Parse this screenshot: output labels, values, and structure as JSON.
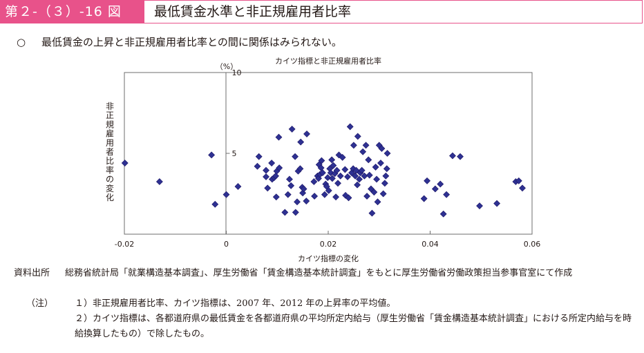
{
  "figure": {
    "number": "第２-（３）-16 図",
    "title": "最低賃金水準と非正規雇用者比率"
  },
  "lead": {
    "bullet": "○",
    "text": "最低賃金の上昇と非正規雇用者比率との間に関係はみられない。"
  },
  "chart_data": {
    "type": "scatter",
    "title": "カイツ指標と非正規雇用者比率",
    "xlabel": "カイツ指標の変化",
    "ylabel": "非正規雇用者比率の変化",
    "y_unit": "（%）",
    "xlim": [
      -0.02,
      0.06
    ],
    "ylim": [
      0,
      10
    ],
    "x_ticks": [
      "-0.02",
      "0",
      "0.02",
      "0.04",
      "0.06"
    ],
    "y_ticks": [
      "5",
      "10"
    ],
    "marker_color": "#2e3192",
    "marker_stroke": "#1b1464",
    "points": [
      {
        "x": -0.0199,
        "y": 4.4
      },
      {
        "x": -0.0131,
        "y": 3.25
      },
      {
        "x": -0.0029,
        "y": 4.9
      },
      {
        "x": -0.0022,
        "y": 1.85
      },
      {
        "x": 0.0,
        "y": 2.45
      },
      {
        "x": 0.0023,
        "y": 2.95
      },
      {
        "x": 0.0061,
        "y": 4.2
      },
      {
        "x": 0.0064,
        "y": 4.8
      },
      {
        "x": 0.0078,
        "y": 3.95
      },
      {
        "x": 0.0078,
        "y": 3.55
      },
      {
        "x": 0.0081,
        "y": 2.85
      },
      {
        "x": 0.0089,
        "y": 4.4
      },
      {
        "x": 0.009,
        "y": 3.4
      },
      {
        "x": 0.0094,
        "y": 3.5
      },
      {
        "x": 0.0097,
        "y": 3.6
      },
      {
        "x": 0.0099,
        "y": 3.9
      },
      {
        "x": 0.0104,
        "y": 4.1
      },
      {
        "x": 0.0098,
        "y": 2.3
      },
      {
        "x": 0.0103,
        "y": 6.0
      },
      {
        "x": 0.0115,
        "y": 1.35
      },
      {
        "x": 0.0121,
        "y": 2.45
      },
      {
        "x": 0.0124,
        "y": 3.4
      },
      {
        "x": 0.0127,
        "y": 3.0
      },
      {
        "x": 0.0129,
        "y": 6.5
      },
      {
        "x": 0.0135,
        "y": 4.8
      },
      {
        "x": 0.0136,
        "y": 1.35
      },
      {
        "x": 0.0139,
        "y": 2.0
      },
      {
        "x": 0.0141,
        "y": 3.9
      },
      {
        "x": 0.0145,
        "y": 4.05
      },
      {
        "x": 0.0146,
        "y": 5.7
      },
      {
        "x": 0.0149,
        "y": 2.9
      },
      {
        "x": 0.015,
        "y": 2.55
      },
      {
        "x": 0.0152,
        "y": 2.8
      },
      {
        "x": 0.0157,
        "y": 2.05
      },
      {
        "x": 0.0158,
        "y": 6.2
      },
      {
        "x": 0.0172,
        "y": 3.25
      },
      {
        "x": 0.0173,
        "y": 2.35
      },
      {
        "x": 0.0179,
        "y": 3.6
      },
      {
        "x": 0.0181,
        "y": 3.45
      },
      {
        "x": 0.0182,
        "y": 4.3
      },
      {
        "x": 0.0184,
        "y": 3.7
      },
      {
        "x": 0.0186,
        "y": 4.1
      },
      {
        "x": 0.0187,
        "y": 4.55
      },
      {
        "x": 0.0189,
        "y": 3.8
      },
      {
        "x": 0.0193,
        "y": 2.45
      },
      {
        "x": 0.0195,
        "y": 3.1
      },
      {
        "x": 0.0197,
        "y": 2.95
      },
      {
        "x": 0.0199,
        "y": 3.5
      },
      {
        "x": 0.0201,
        "y": 2.7
      },
      {
        "x": 0.0203,
        "y": 4.05
      },
      {
        "x": 0.0205,
        "y": 3.8
      },
      {
        "x": 0.0207,
        "y": 4.6
      },
      {
        "x": 0.0208,
        "y": 3.45
      },
      {
        "x": 0.021,
        "y": 4.25
      },
      {
        "x": 0.0213,
        "y": 3.75
      },
      {
        "x": 0.0215,
        "y": 2.3
      },
      {
        "x": 0.0217,
        "y": 3.95
      },
      {
        "x": 0.0219,
        "y": 3.15
      },
      {
        "x": 0.0221,
        "y": 4.9
      },
      {
        "x": 0.0224,
        "y": 3.6
      },
      {
        "x": 0.0228,
        "y": 4.75
      },
      {
        "x": 0.0233,
        "y": 4.0
      },
      {
        "x": 0.0234,
        "y": 2.4
      },
      {
        "x": 0.0238,
        "y": 3.55
      },
      {
        "x": 0.024,
        "y": 2.25
      },
      {
        "x": 0.0243,
        "y": 6.65
      },
      {
        "x": 0.0246,
        "y": 3.8
      },
      {
        "x": 0.0249,
        "y": 4.05
      },
      {
        "x": 0.025,
        "y": 5.5
      },
      {
        "x": 0.0253,
        "y": 3.6
      },
      {
        "x": 0.0255,
        "y": 3.95
      },
      {
        "x": 0.0257,
        "y": 3.05
      },
      {
        "x": 0.0258,
        "y": 6.05
      },
      {
        "x": 0.0261,
        "y": 3.4
      },
      {
        "x": 0.0263,
        "y": 3.8
      },
      {
        "x": 0.0266,
        "y": 3.95
      },
      {
        "x": 0.0268,
        "y": 5.1
      },
      {
        "x": 0.0271,
        "y": 3.6
      },
      {
        "x": 0.0274,
        "y": 5.5
      },
      {
        "x": 0.0276,
        "y": 2.35
      },
      {
        "x": 0.0279,
        "y": 4.6
      },
      {
        "x": 0.0281,
        "y": 3.65
      },
      {
        "x": 0.0284,
        "y": 2.8
      },
      {
        "x": 0.0286,
        "y": 1.3
      },
      {
        "x": 0.029,
        "y": 2.6
      },
      {
        "x": 0.0293,
        "y": 4.15
      },
      {
        "x": 0.0295,
        "y": 3.4
      },
      {
        "x": 0.0297,
        "y": 2.0
      },
      {
        "x": 0.03,
        "y": 5.5
      },
      {
        "x": 0.0303,
        "y": 4.4
      },
      {
        "x": 0.0305,
        "y": 5.3
      },
      {
        "x": 0.0308,
        "y": 2.5
      },
      {
        "x": 0.0311,
        "y": 3.15
      },
      {
        "x": 0.0313,
        "y": 3.6
      },
      {
        "x": 0.0315,
        "y": 4.05
      },
      {
        "x": 0.0316,
        "y": 5.0
      },
      {
        "x": 0.0388,
        "y": 2.2
      },
      {
        "x": 0.0394,
        "y": 3.3
      },
      {
        "x": 0.041,
        "y": 2.8
      },
      {
        "x": 0.042,
        "y": 3.1
      },
      {
        "x": 0.0426,
        "y": 1.25
      },
      {
        "x": 0.0432,
        "y": 2.45
      },
      {
        "x": 0.0444,
        "y": 4.85
      },
      {
        "x": 0.0459,
        "y": 4.8
      },
      {
        "x": 0.0497,
        "y": 1.75
      },
      {
        "x": 0.0531,
        "y": 1.9
      },
      {
        "x": 0.0568,
        "y": 3.25
      },
      {
        "x": 0.0574,
        "y": 3.3
      },
      {
        "x": 0.0581,
        "y": 2.85
      }
    ]
  },
  "notes": {
    "source_label": "資料出所",
    "source_text": "総務省統計局「就業構造基本調査」、厚生労働省「賃金構造基本統計調査」をもとに厚生労働省労働政策担当参事官室にて作成",
    "note_label": "（注）",
    "note1": "１）非正規雇用者比率、カイツ指標は、2007 年、2012 年の上昇率の平均値。",
    "note2": "２）カイツ指標は、各都道府県の最低賃金を各都道府県の平均所定内給与（厚生労働省「賃金構造基本統計調査」における所定内給与を時給換算したもの）で除したもの。"
  }
}
